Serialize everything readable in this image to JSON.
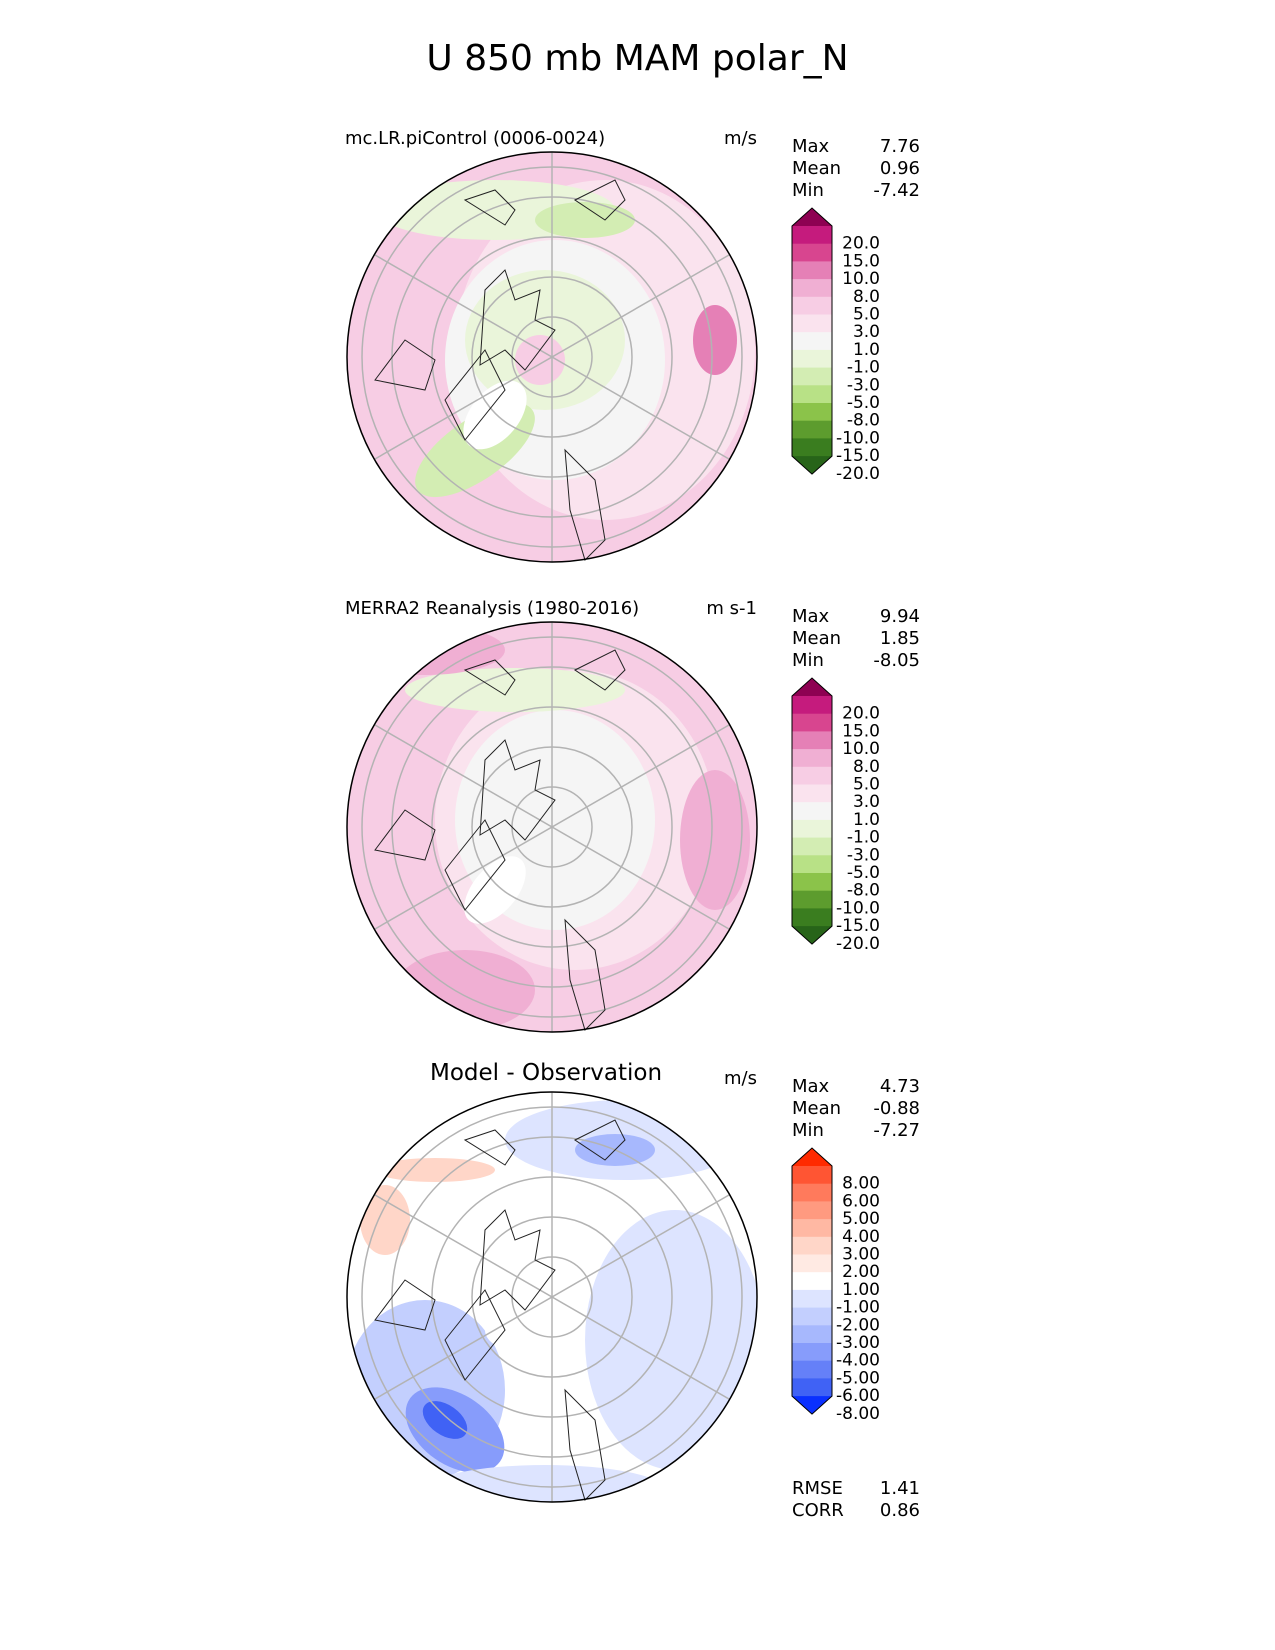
{
  "figure_title": "U 850 mb MAM polar_N",
  "panels": [
    {
      "title": "mc.LR.piControl (0006-0024)",
      "units": "m/s",
      "stats": {
        "max_label": "Max",
        "max": "7.76",
        "mean_label": "Mean",
        "mean": "0.96",
        "min_label": "Min",
        "min": "-7.42"
      },
      "colorbar": {
        "ticks": [
          "20.0",
          "15.0",
          "10.0",
          "8.0",
          "5.0",
          "3.0",
          "1.0",
          "-1.0",
          "-3.0",
          "-5.0",
          "-8.0",
          "-10.0",
          "-15.0",
          "-20.0"
        ],
        "colors": [
          "#8e0152",
          "#c51b7d",
          "#d8458f",
          "#e580b6",
          "#f0afd3",
          "#f7cde4",
          "#fae3ee",
          "#f5f5f5",
          "#eaf5da",
          "#d3edb3",
          "#b8e186",
          "#8bc34a",
          "#5d9c2e",
          "#3a7d1f",
          "#276419"
        ]
      }
    },
    {
      "title": "MERRA2 Reanalysis (1980-2016)",
      "units": "m s-1",
      "stats": {
        "max_label": "Max",
        "max": "9.94",
        "mean_label": "Mean",
        "mean": "1.85",
        "min_label": "Min",
        "min": "-8.05"
      },
      "colorbar": {
        "ticks": [
          "20.0",
          "15.0",
          "10.0",
          "8.0",
          "5.0",
          "3.0",
          "1.0",
          "-1.0",
          "-3.0",
          "-5.0",
          "-8.0",
          "-10.0",
          "-15.0",
          "-20.0"
        ],
        "colors": [
          "#8e0152",
          "#c51b7d",
          "#d8458f",
          "#e580b6",
          "#f0afd3",
          "#f7cde4",
          "#fae3ee",
          "#f5f5f5",
          "#eaf5da",
          "#d3edb3",
          "#b8e186",
          "#8bc34a",
          "#5d9c2e",
          "#3a7d1f",
          "#276419"
        ]
      }
    },
    {
      "title": "Model - Observation",
      "units": "m/s",
      "stats": {
        "max_label": "Max",
        "max": "4.73",
        "mean_label": "Mean",
        "mean": "-0.88",
        "min_label": "Min",
        "min": "-7.27"
      },
      "colorbar": {
        "ticks": [
          "8.00",
          "6.00",
          "5.00",
          "4.00",
          "3.00",
          "2.00",
          "1.00",
          "-1.00",
          "-2.00",
          "-3.00",
          "-4.00",
          "-5.00",
          "-6.00",
          "-8.00"
        ],
        "colors": [
          "#ff2a00",
          "#ff5533",
          "#ff7a5c",
          "#ff9a80",
          "#ffb8a3",
          "#ffd6c8",
          "#ffeae3",
          "#ffffff",
          "#dde4ff",
          "#c3cffe",
          "#a7b8fd",
          "#879cfb",
          "#6580f8",
          "#4062f5",
          "#0a30ff"
        ]
      },
      "rmse_label": "RMSE",
      "rmse": "1.41",
      "corr_label": "CORR",
      "corr": "0.86"
    }
  ],
  "palette": {
    "map_ring": "#000000",
    "grid": "#b3b3b3",
    "coast": "#222222"
  }
}
